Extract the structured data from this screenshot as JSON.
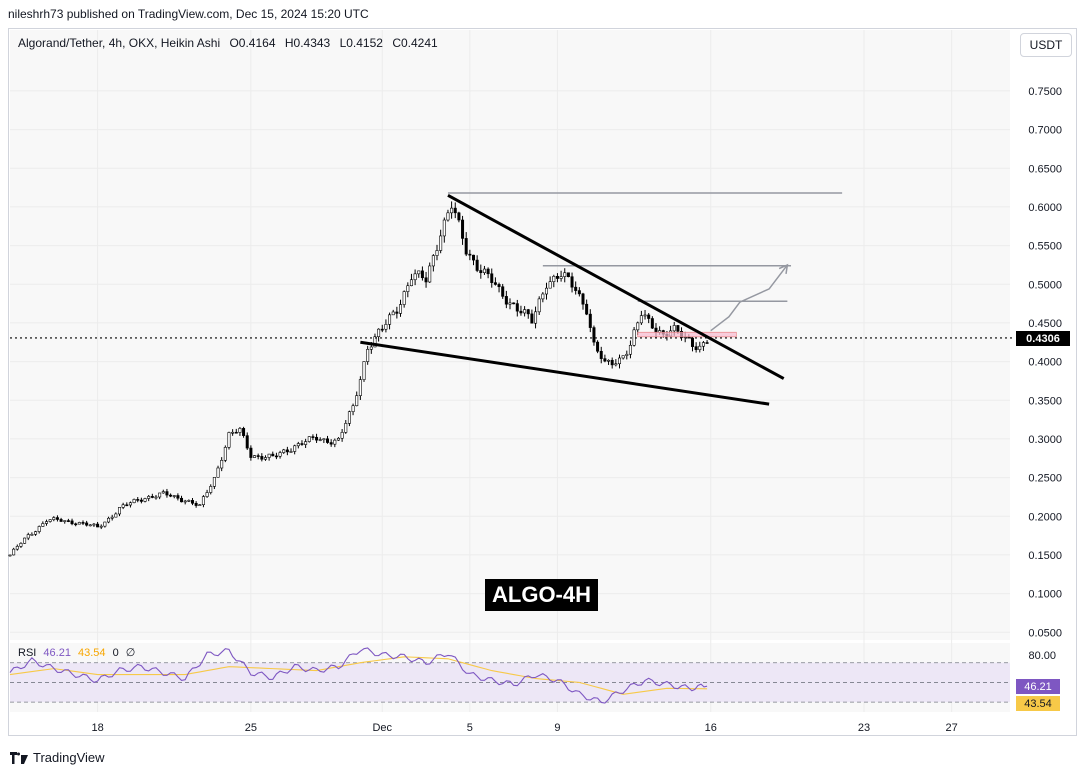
{
  "header": {
    "publish_text": "nileshrh73 published on TradingView.com, Dec 15, 2024 15:20 UTC"
  },
  "symbol": {
    "title": "Algorand/Tether, 4h, OKX, Heikin Ashi",
    "open": "O0.4164",
    "high": "H0.4343",
    "low": "L0.4152",
    "close": "C0.4241"
  },
  "currency_button": "USDT",
  "overlay_label": "ALGO-4H",
  "last_price": "0.4306",
  "rsi": {
    "name": "RSI",
    "value": "46.21",
    "ma_value": "43.54",
    "extra1": "0",
    "extra2": "∅",
    "level_label": "80.00"
  },
  "footer": {
    "brand": "TradingView"
  },
  "colors": {
    "up": "#26a69a",
    "down": "#ef5350",
    "candle": "#000000",
    "rsi_line": "#7e57c2",
    "rsi_ma": "#f7c948",
    "rsi_band": "#ede7f6",
    "horizontal_levels": "#9598a1",
    "zone": "#f8bbd0"
  },
  "chart_data": {
    "type": "candlestick",
    "style": "Heikin Ashi",
    "timeframe": "4h",
    "x_tick_labels": [
      "18",
      "25",
      "Dec",
      "5",
      "9",
      "16",
      "23",
      "27"
    ],
    "y_tick_labels": [
      "0.7500",
      "0.7000",
      "0.6500",
      "0.6000",
      "0.5500",
      "0.5000",
      "0.4500",
      "0.4000",
      "0.3500",
      "0.3000",
      "0.2500",
      "0.2000",
      "0.1500",
      "0.1000",
      "0.0500"
    ],
    "ylim": [
      0.04,
      0.79
    ],
    "x_axis_dates": {
      "start": "2024-11-14T00:00",
      "end": "2024-12-29T16:00",
      "tick_dates": [
        "2024-11-18",
        "2024-11-25",
        "2024-12-01",
        "2024-12-05",
        "2024-12-09",
        "2024-12-16",
        "2024-12-23",
        "2024-12-27"
      ]
    },
    "price_points": [
      [
        "2024-11-14T00:00",
        0.15
      ],
      [
        "2024-11-14T20:00",
        0.175
      ],
      [
        "2024-11-15T16:00",
        0.195
      ],
      [
        "2024-11-17T00:00",
        0.193
      ],
      [
        "2024-11-18T00:00",
        0.185
      ],
      [
        "2024-11-19T00:00",
        0.21
      ],
      [
        "2024-11-20T04:00",
        0.225
      ],
      [
        "2024-11-21T00:00",
        0.228
      ],
      [
        "2024-11-22T00:00",
        0.222
      ],
      [
        "2024-11-22T16:00",
        0.212
      ],
      [
        "2024-11-23T08:00",
        0.25
      ],
      [
        "2024-11-24T00:00",
        0.305
      ],
      [
        "2024-11-24T12:00",
        0.31
      ],
      [
        "2024-11-25T00:00",
        0.28
      ],
      [
        "2024-11-26T00:00",
        0.275
      ],
      [
        "2024-11-27T00:00",
        0.292
      ],
      [
        "2024-11-28T00:00",
        0.3
      ],
      [
        "2024-11-29T00:00",
        0.298
      ],
      [
        "2024-11-29T16:00",
        0.34
      ],
      [
        "2024-11-30T08:00",
        0.42
      ],
      [
        "2024-12-01T00:00",
        0.44
      ],
      [
        "2024-12-01T16:00",
        0.47
      ],
      [
        "2024-12-02T08:00",
        0.51
      ],
      [
        "2024-12-03T00:00",
        0.505
      ],
      [
        "2024-12-03T16:00",
        0.57
      ],
      [
        "2024-12-04T04:00",
        0.6
      ],
      [
        "2024-12-04T20:00",
        0.545
      ],
      [
        "2024-12-05T12:00",
        0.52
      ],
      [
        "2024-12-06T08:00",
        0.49
      ],
      [
        "2024-12-07T00:00",
        0.475
      ],
      [
        "2024-12-07T20:00",
        0.45
      ],
      [
        "2024-12-08T12:00",
        0.505
      ],
      [
        "2024-12-09T04:00",
        0.51
      ],
      [
        "2024-12-09T20:00",
        0.495
      ],
      [
        "2024-12-10T08:00",
        0.47
      ],
      [
        "2024-12-10T16:00",
        0.42
      ],
      [
        "2024-12-11T04:00",
        0.395
      ],
      [
        "2024-12-11T20:00",
        0.405
      ],
      [
        "2024-12-12T08:00",
        0.42
      ],
      [
        "2024-12-12T20:00",
        0.46
      ],
      [
        "2024-12-13T08:00",
        0.45
      ],
      [
        "2024-12-13T20:00",
        0.435
      ],
      [
        "2024-12-14T08:00",
        0.438
      ],
      [
        "2024-12-15T00:00",
        0.43
      ],
      [
        "2024-12-15T12:00",
        0.418
      ],
      [
        "2024-12-15T20:00",
        0.424
      ]
    ],
    "annotations": {
      "upper_trendline": [
        [
          "2024-12-04T00:00",
          0.615
        ],
        [
          "2024-12-19T08:00",
          0.378
        ]
      ],
      "lower_trendline": [
        [
          "2024-11-30T00:00",
          0.425
        ],
        [
          "2024-12-18T16:00",
          0.345
        ]
      ],
      "horizontal_levels": [
        {
          "from": "2024-12-04T00:00",
          "to": "2024-12-22T00:00",
          "price": 0.618
        },
        {
          "from": "2024-12-08T08:00",
          "to": "2024-12-19T16:00",
          "price": 0.524
        },
        {
          "from": "2024-12-12T16:00",
          "to": "2024-12-19T12:00",
          "price": 0.478
        }
      ],
      "zone": {
        "from": "2024-12-12T16:00",
        "to": "2024-12-17T04:00",
        "top": 0.438,
        "bottom": 0.432
      },
      "last_price_line": 0.4306,
      "projection_arrow": [
        [
          "2024-12-16T00:00",
          0.44
        ],
        [
          "2024-12-16T20:00",
          0.458
        ],
        [
          "2024-12-17T08:00",
          0.477
        ],
        [
          "2024-12-18T16:00",
          0.494
        ],
        [
          "2024-12-19T12:00",
          0.525
        ]
      ]
    }
  },
  "rsi_data": {
    "ylim": [
      20,
      90
    ],
    "levels": [
      70,
      50,
      30
    ],
    "rsi_points": [
      [
        "2024-11-14T00:00",
        60
      ],
      [
        "2024-11-15T00:00",
        72
      ],
      [
        "2024-11-16T00:00",
        64
      ],
      [
        "2024-11-17T00:00",
        58
      ],
      [
        "2024-11-18T00:00",
        52
      ],
      [
        "2024-11-19T00:00",
        62
      ],
      [
        "2024-11-20T00:00",
        66
      ],
      [
        "2024-11-21T00:00",
        60
      ],
      [
        "2024-11-22T00:00",
        54
      ],
      [
        "2024-11-23T00:00",
        78
      ],
      [
        "2024-11-24T00:00",
        82
      ],
      [
        "2024-11-25T00:00",
        60
      ],
      [
        "2024-11-26T00:00",
        55
      ],
      [
        "2024-11-27T00:00",
        66
      ],
      [
        "2024-11-28T00:00",
        62
      ],
      [
        "2024-11-29T00:00",
        66
      ],
      [
        "2024-11-30T00:00",
        84
      ],
      [
        "2024-12-01T00:00",
        78
      ],
      [
        "2024-12-02T00:00",
        76
      ],
      [
        "2024-12-03T00:00",
        70
      ],
      [
        "2024-12-04T00:00",
        80
      ],
      [
        "2024-12-05T00:00",
        58
      ],
      [
        "2024-12-06T00:00",
        52
      ],
      [
        "2024-12-07T00:00",
        48
      ],
      [
        "2024-12-08T00:00",
        58
      ],
      [
        "2024-12-09T00:00",
        52
      ],
      [
        "2024-12-10T00:00",
        38
      ],
      [
        "2024-12-11T00:00",
        30
      ],
      [
        "2024-12-12T00:00",
        42
      ],
      [
        "2024-12-13T00:00",
        52
      ],
      [
        "2024-12-14T00:00",
        48
      ],
      [
        "2024-12-15T00:00",
        44
      ],
      [
        "2024-12-15T20:00",
        46.21
      ]
    ],
    "ma_points": [
      [
        "2024-11-14T00:00",
        58
      ],
      [
        "2024-11-16T00:00",
        64
      ],
      [
        "2024-11-18T00:00",
        58
      ],
      [
        "2024-11-20T00:00",
        58
      ],
      [
        "2024-11-22T00:00",
        58
      ],
      [
        "2024-11-24T00:00",
        66
      ],
      [
        "2024-11-26T00:00",
        64
      ],
      [
        "2024-11-28T00:00",
        62
      ],
      [
        "2024-11-30T00:00",
        70
      ],
      [
        "2024-12-02T00:00",
        76
      ],
      [
        "2024-12-04T00:00",
        74
      ],
      [
        "2024-12-06T00:00",
        62
      ],
      [
        "2024-12-08T00:00",
        54
      ],
      [
        "2024-12-10T00:00",
        50
      ],
      [
        "2024-12-12T00:00",
        38
      ],
      [
        "2024-12-14T00:00",
        44
      ],
      [
        "2024-12-15T20:00",
        43.54
      ]
    ]
  }
}
